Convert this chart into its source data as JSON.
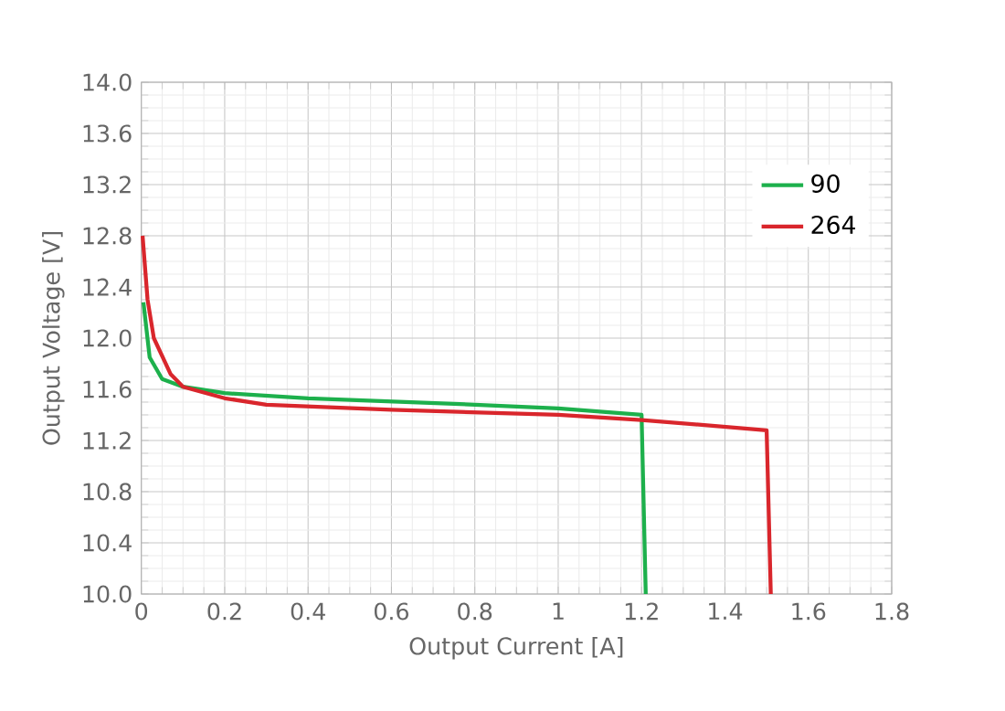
{
  "chart_data": {
    "type": "line",
    "xlabel": "Output Current [A]",
    "ylabel": "Output Voltage [V]",
    "xlim": [
      0,
      1.8
    ],
    "xticks": [
      0,
      0.2,
      0.4,
      0.6,
      0.8,
      1,
      1.2,
      1.4,
      1.6,
      1.8
    ],
    "ylim": [
      10.0,
      14.0
    ],
    "yticks": [
      {
        "value": 10.0,
        "label": "10.0"
      },
      {
        "value": 10.4,
        "label": "10.4"
      },
      {
        "value": 10.8,
        "label": "10.8"
      },
      {
        "value": 11.2,
        "label": "11.2"
      },
      {
        "value": 11.6,
        "label": "11.6"
      },
      {
        "value": 12.0,
        "label": "12.0"
      },
      {
        "value": 12.4,
        "label": "12.4"
      },
      {
        "value": 12.8,
        "label": "12.8"
      },
      {
        "value": 13.2,
        "label": "13.2"
      },
      {
        "value": 13.6,
        "label": "13.6"
      },
      {
        "value": 14.0,
        "label": "14.0"
      }
    ],
    "grid": true,
    "legend": "top right",
    "marker": "none",
    "line_style": "solid",
    "series": [
      {
        "name": "90",
        "color": "#1db04c",
        "x": [
          0.005,
          0.02,
          0.05,
          0.1,
          0.2,
          0.4,
          0.8,
          1.0,
          1.2,
          1.21
        ],
        "values": [
          12.28,
          11.85,
          11.68,
          11.62,
          11.57,
          11.53,
          11.48,
          11.45,
          11.4,
          10.0
        ]
      },
      {
        "name": "264",
        "color": "#d9262c",
        "x": [
          0.003,
          0.015,
          0.03,
          0.07,
          0.1,
          0.2,
          0.3,
          0.6,
          1.0,
          1.2,
          1.5,
          1.51
        ],
        "values": [
          12.8,
          12.3,
          12.0,
          11.72,
          11.62,
          11.53,
          11.48,
          11.44,
          11.4,
          11.36,
          11.28,
          10.0
        ]
      }
    ]
  }
}
